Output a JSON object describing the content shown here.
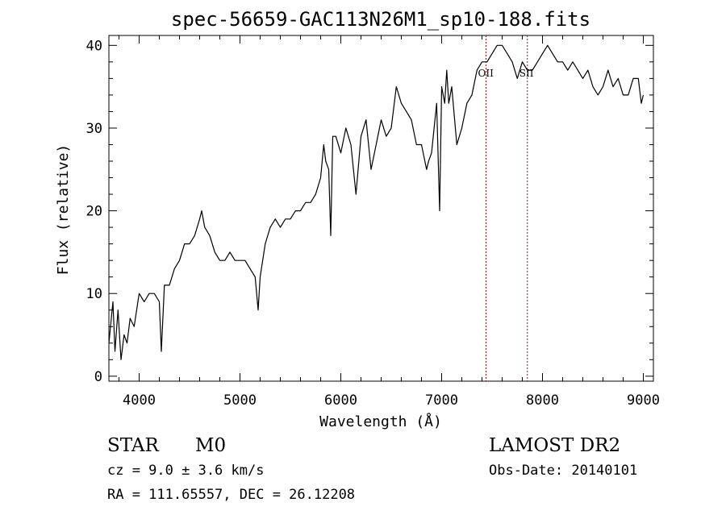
{
  "chart_data": {
    "type": "line",
    "title": "spec-56659-GAC113N26M1_sp10-188.fits",
    "xlabel": "Wavelength (Å)",
    "ylabel": "Flux (relative)",
    "xlim": [
      3700,
      9100
    ],
    "ylim": [
      -0.6,
      41.2
    ],
    "xticks": [
      4000,
      5000,
      6000,
      7000,
      8000,
      9000
    ],
    "yticks": [
      0,
      10,
      20,
      30,
      40
    ],
    "grid": false,
    "series": [
      {
        "x": [
          3700,
          3740,
          3760,
          3790,
          3820,
          3850,
          3880,
          3910,
          3950,
          4000,
          4050,
          4100,
          4150,
          4200,
          4220,
          4250,
          4300,
          4350,
          4400,
          4450,
          4500,
          4550,
          4600,
          4620,
          4650,
          4700,
          4750,
          4800,
          4850,
          4900,
          4950,
          5000,
          5050,
          5100,
          5150,
          5180,
          5200,
          5250,
          5300,
          5350,
          5400,
          5450,
          5500,
          5550,
          5600,
          5650,
          5700,
          5750,
          5800,
          5830,
          5850,
          5880,
          5900,
          5920,
          5950,
          6000,
          6050,
          6100,
          6150,
          6200,
          6250,
          6300,
          6350,
          6400,
          6450,
          6500,
          6550,
          6600,
          6650,
          6700,
          6750,
          6800,
          6850,
          6870,
          6900,
          6950,
          6980,
          7000,
          7030,
          7050,
          7070,
          7100,
          7150,
          7200,
          7250,
          7300,
          7350,
          7400,
          7450,
          7500,
          7550,
          7600,
          7650,
          7700,
          7750,
          7800,
          7850,
          7900,
          7950,
          8000,
          8050,
          8100,
          8150,
          8200,
          8250,
          8300,
          8350,
          8400,
          8450,
          8500,
          8550,
          8600,
          8650,
          8700,
          8750,
          8800,
          8850,
          8900,
          8950,
          8980,
          9000
        ],
        "y": [
          4,
          9,
          3,
          8,
          2,
          5,
          4,
          7,
          6,
          10,
          9,
          10,
          10,
          9,
          3,
          11,
          11,
          13,
          14,
          16,
          16,
          17,
          19,
          20,
          18,
          17,
          15,
          14,
          14,
          15,
          14,
          14,
          14,
          13,
          12,
          8,
          12,
          16,
          18,
          19,
          18,
          19,
          19,
          20,
          20,
          21,
          21,
          22,
          24,
          28,
          26,
          25,
          17,
          29,
          29,
          27,
          30,
          28,
          22,
          29,
          31,
          25,
          28,
          31,
          29,
          30,
          35,
          33,
          32,
          31,
          28,
          28,
          25,
          26,
          27,
          33,
          20,
          35,
          33,
          37,
          33,
          35,
          28,
          30,
          33,
          34,
          37,
          38,
          38,
          39,
          40,
          40,
          39,
          38,
          36,
          38,
          37,
          37,
          38,
          39,
          40,
          39,
          38,
          38,
          37,
          38,
          37,
          36,
          37,
          35,
          34,
          35,
          37,
          35,
          36,
          34,
          34,
          36,
          36,
          33,
          34
        ]
      }
    ],
    "reference_lines": [
      {
        "x": 7440,
        "label": "OII"
      },
      {
        "x": 7850,
        "label": "SII"
      }
    ]
  },
  "info": {
    "classification": "STAR",
    "subclass": "M0",
    "survey": "LAMOST DR2",
    "redshift": "cz = 9.0 ± 3.6 km/s",
    "obs_date": "Obs-Date: 20140101",
    "coords": "RA = 111.65557, DEC =  26.12208"
  }
}
